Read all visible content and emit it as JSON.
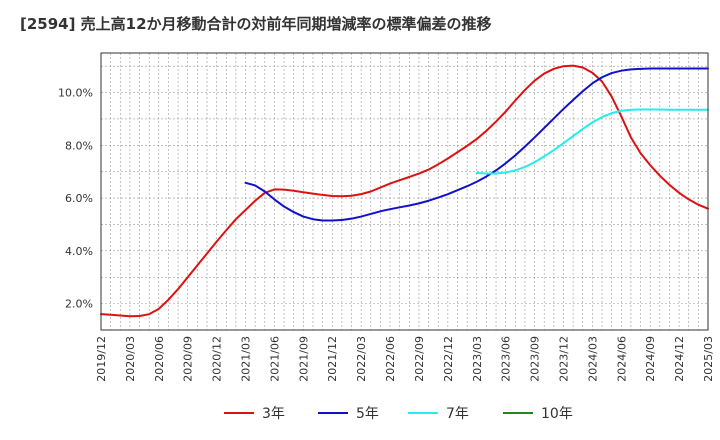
{
  "chart_data": {
    "type": "line",
    "title": "[2594]  売上高12か月移動合計の対前年同期増減率の標準偏差の推移",
    "xlabel": "",
    "ylabel": "",
    "ylim": [
      1.0,
      11.5
    ],
    "yticks": [
      2.0,
      4.0,
      6.0,
      8.0,
      10.0
    ],
    "ytick_labels": [
      "2.0%",
      "4.0%",
      "6.0%",
      "8.0%",
      "10.0%"
    ],
    "x_tick_labels": [
      "2019/12",
      "2020/03",
      "2020/06",
      "2020/09",
      "2020/12",
      "2021/03",
      "2021/06",
      "2021/09",
      "2021/12",
      "2022/03",
      "2022/06",
      "2022/09",
      "2022/12",
      "2023/03",
      "2023/06",
      "2023/09",
      "2023/12",
      "2024/03",
      "2024/06",
      "2024/09",
      "2024/12",
      "2025/03"
    ],
    "grid": true,
    "legend_position": "bottom",
    "series": [
      {
        "name": "3年",
        "color": "#dd1111",
        "start_index": 0,
        "values": [
          1.6,
          1.58,
          1.55,
          1.52,
          1.53,
          1.6,
          1.8,
          2.15,
          2.55,
          3.0,
          3.45,
          3.9,
          4.35,
          4.78,
          5.2,
          5.55,
          5.9,
          6.2,
          6.33,
          6.32,
          6.28,
          6.22,
          6.17,
          6.12,
          6.08,
          6.07,
          6.09,
          6.15,
          6.25,
          6.4,
          6.55,
          6.68,
          6.8,
          6.93,
          7.08,
          7.28,
          7.5,
          7.74,
          7.98,
          8.24,
          8.55,
          8.9,
          9.28,
          9.7,
          10.1,
          10.45,
          10.72,
          10.9,
          11.0,
          11.02,
          10.95,
          10.75,
          10.42,
          9.85,
          9.1,
          8.3,
          7.7,
          7.25,
          6.85,
          6.5,
          6.2,
          5.95,
          5.75,
          5.6
        ]
      },
      {
        "name": "5年",
        "color": "#1111cc",
        "start_index": 15,
        "values": [
          6.58,
          6.48,
          6.25,
          5.95,
          5.68,
          5.47,
          5.3,
          5.2,
          5.15,
          5.15,
          5.17,
          5.22,
          5.3,
          5.4,
          5.5,
          5.58,
          5.65,
          5.72,
          5.8,
          5.9,
          6.02,
          6.15,
          6.3,
          6.45,
          6.62,
          6.82,
          7.05,
          7.32,
          7.62,
          7.95,
          8.3,
          8.66,
          9.02,
          9.38,
          9.72,
          10.05,
          10.35,
          10.58,
          10.74,
          10.83,
          10.88,
          10.9,
          10.91,
          10.91,
          10.91,
          10.91,
          10.91,
          10.91,
          10.91
        ]
      },
      {
        "name": "7年",
        "color": "#22eeee",
        "start_index": 39,
        "values": [
          6.95,
          6.93,
          6.93,
          6.97,
          7.05,
          7.18,
          7.36,
          7.58,
          7.82,
          8.08,
          8.35,
          8.62,
          8.87,
          9.07,
          9.22,
          9.31,
          9.35,
          9.36,
          9.36,
          9.36,
          9.35,
          9.35,
          9.35,
          9.35,
          9.35
        ]
      },
      {
        "name": "10年",
        "color": "#228822",
        "start_index": 0,
        "values": []
      }
    ]
  }
}
